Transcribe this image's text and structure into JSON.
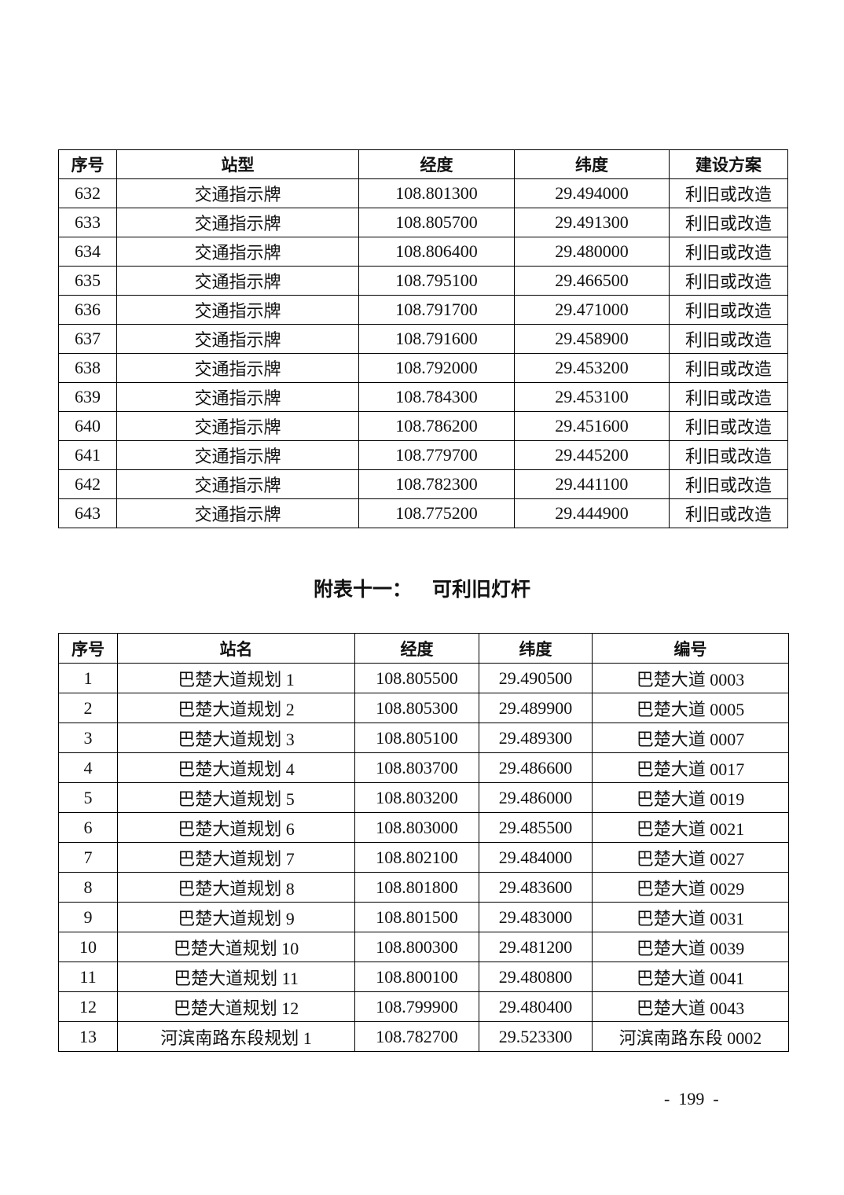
{
  "table1": {
    "headers": [
      "序号",
      "站型",
      "经度",
      "纬度",
      "建设方案"
    ],
    "rows": [
      [
        "632",
        "交通指示牌",
        "108.801300",
        "29.494000",
        "利旧或改造"
      ],
      [
        "633",
        "交通指示牌",
        "108.805700",
        "29.491300",
        "利旧或改造"
      ],
      [
        "634",
        "交通指示牌",
        "108.806400",
        "29.480000",
        "利旧或改造"
      ],
      [
        "635",
        "交通指示牌",
        "108.795100",
        "29.466500",
        "利旧或改造"
      ],
      [
        "636",
        "交通指示牌",
        "108.791700",
        "29.471000",
        "利旧或改造"
      ],
      [
        "637",
        "交通指示牌",
        "108.791600",
        "29.458900",
        "利旧或改造"
      ],
      [
        "638",
        "交通指示牌",
        "108.792000",
        "29.453200",
        "利旧或改造"
      ],
      [
        "639",
        "交通指示牌",
        "108.784300",
        "29.453100",
        "利旧或改造"
      ],
      [
        "640",
        "交通指示牌",
        "108.786200",
        "29.451600",
        "利旧或改造"
      ],
      [
        "641",
        "交通指示牌",
        "108.779700",
        "29.445200",
        "利旧或改造"
      ],
      [
        "642",
        "交通指示牌",
        "108.782300",
        "29.441100",
        "利旧或改造"
      ],
      [
        "643",
        "交通指示牌",
        "108.775200",
        "29.444900",
        "利旧或改造"
      ]
    ]
  },
  "section_title": "附表十一：   可利旧灯杆",
  "table2": {
    "headers": [
      "序号",
      "站名",
      "经度",
      "纬度",
      "编号"
    ],
    "rows": [
      [
        "1",
        "巴楚大道规划 1",
        "108.805500",
        "29.490500",
        "巴楚大道 0003"
      ],
      [
        "2",
        "巴楚大道规划 2",
        "108.805300",
        "29.489900",
        "巴楚大道 0005"
      ],
      [
        "3",
        "巴楚大道规划 3",
        "108.805100",
        "29.489300",
        "巴楚大道 0007"
      ],
      [
        "4",
        "巴楚大道规划 4",
        "108.803700",
        "29.486600",
        "巴楚大道 0017"
      ],
      [
        "5",
        "巴楚大道规划 5",
        "108.803200",
        "29.486000",
        "巴楚大道 0019"
      ],
      [
        "6",
        "巴楚大道规划 6",
        "108.803000",
        "29.485500",
        "巴楚大道 0021"
      ],
      [
        "7",
        "巴楚大道规划 7",
        "108.802100",
        "29.484000",
        "巴楚大道 0027"
      ],
      [
        "8",
        "巴楚大道规划 8",
        "108.801800",
        "29.483600",
        "巴楚大道 0029"
      ],
      [
        "9",
        "巴楚大道规划 9",
        "108.801500",
        "29.483000",
        "巴楚大道 0031"
      ],
      [
        "10",
        "巴楚大道规划 10",
        "108.800300",
        "29.481200",
        "巴楚大道 0039"
      ],
      [
        "11",
        "巴楚大道规划 11",
        "108.800100",
        "29.480800",
        "巴楚大道 0041"
      ],
      [
        "12",
        "巴楚大道规划 12",
        "108.799900",
        "29.480400",
        "巴楚大道 0043"
      ],
      [
        "13",
        "河滨南路东段规划 1",
        "108.782700",
        "29.523300",
        "河滨南路东段 0002"
      ]
    ]
  },
  "page_number": "-  199  -"
}
